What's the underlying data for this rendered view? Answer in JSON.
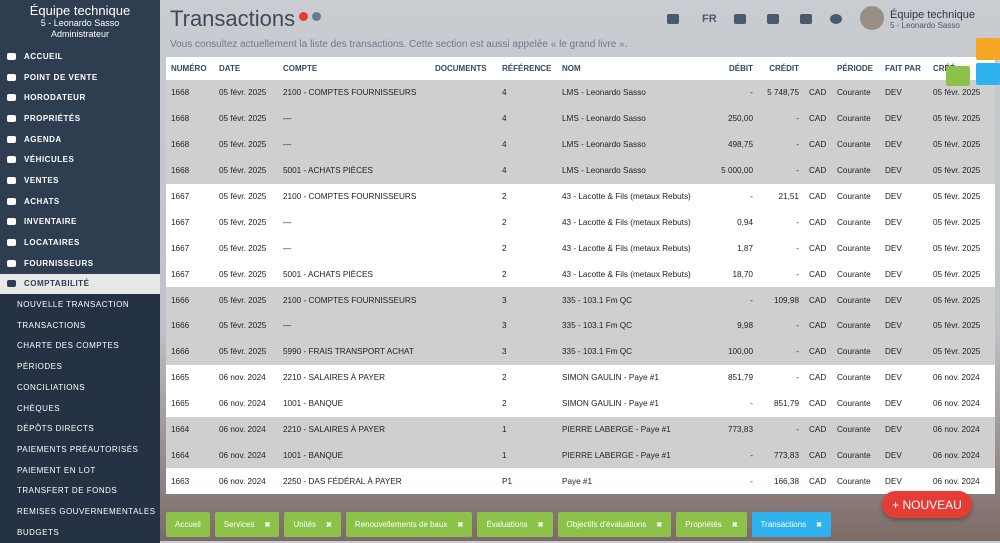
{
  "sidebar": {
    "company": "Équipe technique",
    "user": "5 - Leonardo Sasso",
    "role": "Administrateur",
    "menu": [
      "ACCUEIL",
      "POINT DE VENTE",
      "HORODATEUR",
      "PROPRIÉTÉS",
      "AGENDA",
      "VÉHICULES",
      "VENTES",
      "ACHATS",
      "INVENTAIRE",
      "LOCATAIRES",
      "FOURNISSEURS",
      "COMPTABILITÉ"
    ],
    "submenu": [
      "NOUVELLE TRANSACTION",
      "TRANSACTIONS",
      "CHARTE DES COMPTES",
      "PÉRIODES",
      "CONCILIATIONS",
      "CHÈQUES",
      "DÉPÔTS DIRECTS",
      "PAIEMENTS PRÉAUTORISÉS",
      "PAIEMENT EN LOT",
      "TRANSFERT DE FONDS",
      "REMISES GOUVERNEMENTALES",
      "BUDGETS"
    ]
  },
  "topbar": {
    "language": "FR",
    "company": "Équipe technique",
    "user": "5 - Leonardo Sasso"
  },
  "header": {
    "title": "Transactions",
    "subtitle": "Vous consultez actuellement la liste des transactions. Cette section est aussi appelée « le grand livre »."
  },
  "table": {
    "columns": [
      "NUMÉRO",
      "DATE",
      "COMPTE",
      "DOCUMENTS",
      "RÉFÉRENCE",
      "NOM",
      "DÉBIT",
      "CRÉDIT",
      "PÉRIODE",
      "FAIT PAR",
      "CRÉÉ"
    ],
    "rows": [
      [
        "1668",
        "05 févr. 2025",
        "2100 - COMPTES FOURNISSEURS",
        "4",
        "LMS - Leonardo Sasso",
        "-",
        "5 748,75",
        "CAD",
        "Courante",
        "DEV",
        "05 févr. 2025"
      ],
      [
        "1668",
        "05 févr. 2025",
        "—",
        "4",
        "LMS - Leonardo Sasso",
        "250,00",
        "-",
        "CAD",
        "Courante",
        "DEV",
        "05 févr. 2025"
      ],
      [
        "1668",
        "05 févr. 2025",
        "—",
        "4",
        "LMS - Leonardo Sasso",
        "498,75",
        "-",
        "CAD",
        "Courante",
        "DEV",
        "05 févr. 2025"
      ],
      [
        "1668",
        "05 févr. 2025",
        "5001 - ACHATS PIÈCES",
        "4",
        "LMS - Leonardo Sasso",
        "5 000,00",
        "-",
        "CAD",
        "Courante",
        "DEV",
        "05 févr. 2025"
      ],
      [
        "1667",
        "05 févr. 2025",
        "2100 - COMPTES FOURNISSEURS",
        "2",
        "43 - Lacotte & Fils (metaux Rebuts)",
        "-",
        "21,51",
        "CAD",
        "Courante",
        "DEV",
        "05 févr. 2025"
      ],
      [
        "1667",
        "05 févr. 2025",
        "—",
        "2",
        "43 - Lacotte & Fils (metaux Rebuts)",
        "0,94",
        "-",
        "CAD",
        "Courante",
        "DEV",
        "05 févr. 2025"
      ],
      [
        "1667",
        "05 févr. 2025",
        "—",
        "2",
        "43 - Lacotte & Fils (metaux Rebuts)",
        "1,87",
        "-",
        "CAD",
        "Courante",
        "DEV",
        "05 févr. 2025"
      ],
      [
        "1667",
        "05 févr. 2025",
        "5001 - ACHATS PIÈCES",
        "2",
        "43 - Lacotte & Fils (metaux Rebuts)",
        "18,70",
        "-",
        "CAD",
        "Courante",
        "DEV",
        "05 févr. 2025"
      ],
      [
        "1666",
        "05 févr. 2025",
        "2100 - COMPTES FOURNISSEURS",
        "3",
        "335 - 103.1 Fm QC",
        "-",
        "109,98",
        "CAD",
        "Courante",
        "DEV",
        "05 févr. 2025"
      ],
      [
        "1666",
        "05 févr. 2025",
        "—",
        "3",
        "335 - 103.1 Fm QC",
        "9,98",
        "-",
        "CAD",
        "Courante",
        "DEV",
        "05 févr. 2025"
      ],
      [
        "1666",
        "05 févr. 2025",
        "5990 - FRAIS TRANSPORT ACHAT",
        "3",
        "335 - 103.1 Fm QC",
        "100,00",
        "-",
        "CAD",
        "Courante",
        "DEV",
        "05 févr. 2025"
      ],
      [
        "1665",
        "06 nov. 2024",
        "2210 - SALAIRES À PAYER",
        "2",
        "SIMON GAULIN - Paye #1",
        "851,79",
        "-",
        "CAD",
        "Courante",
        "DEV",
        "06 nov. 2024"
      ],
      [
        "1665",
        "06 nov. 2024",
        "1001 - BANQUE",
        "2",
        "SIMON GAULIN - Paye #1",
        "-",
        "851,79",
        "CAD",
        "Courante",
        "DEV",
        "06 nov. 2024"
      ],
      [
        "1664",
        "06 nov. 2024",
        "2210 - SALAIRES À PAYER",
        "1",
        "PIERRE LABERGE - Paye #1",
        "773,83",
        "-",
        "CAD",
        "Courante",
        "DEV",
        "06 nov. 2024"
      ],
      [
        "1664",
        "06 nov. 2024",
        "1001 - BANQUE",
        "1",
        "PIERRE LABERGE - Paye #1",
        "-",
        "773,83",
        "CAD",
        "Courante",
        "DEV",
        "06 nov. 2024"
      ],
      [
        "1663",
        "06 nov. 2024",
        "2250 - DAS FÉDÉRAL À PAYER",
        "P1",
        "Paye #1",
        "-",
        "166,38",
        "CAD",
        "Courante",
        "DEV",
        "06 nov. 2024"
      ]
    ]
  },
  "tabs": [
    "Accueil",
    "Services",
    "Unités",
    "Renouvellements de baux",
    "Évaluations",
    "Objectifs d'évaluations",
    "Propriétés",
    "Transactions"
  ],
  "new_button": "+ NOUVEAU"
}
